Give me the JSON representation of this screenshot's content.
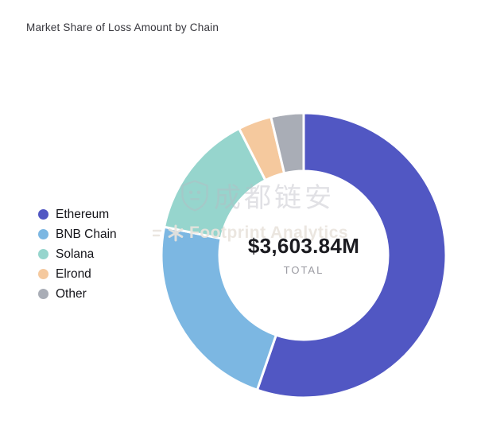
{
  "page": {
    "background": "#ffffff"
  },
  "chart_data": {
    "type": "pie",
    "variant": "donut",
    "title": "Market Share of Loss Amount by Chain",
    "center_label": "$3,603.84M",
    "center_sublabel": "TOTAL",
    "total": "$3,603.84M",
    "start_angle_deg": 0,
    "clockwise": true,
    "inner_radius_ratio": 0.59,
    "legend_position": "left",
    "segment_gap_color": "#ffffff",
    "segments": [
      {
        "name": "Ethereum",
        "percent": 55.3,
        "color": "#5157c3"
      },
      {
        "name": "BNB Chain",
        "percent": 22.9,
        "color": "#7cb7e2"
      },
      {
        "name": "Solana",
        "percent": 14.3,
        "color": "#96d5cd"
      },
      {
        "name": "Elrond",
        "percent": 3.8,
        "color": "#f5c99e"
      },
      {
        "name": "Other",
        "percent": 3.7,
        "color": "#a9adb6"
      }
    ]
  },
  "watermarks": {
    "primary": {
      "text": "成都链安",
      "icon": "shield-icon"
    },
    "secondary": {
      "text": "Footprint Analytics",
      "icon": "asterisk-logo-icon"
    }
  }
}
